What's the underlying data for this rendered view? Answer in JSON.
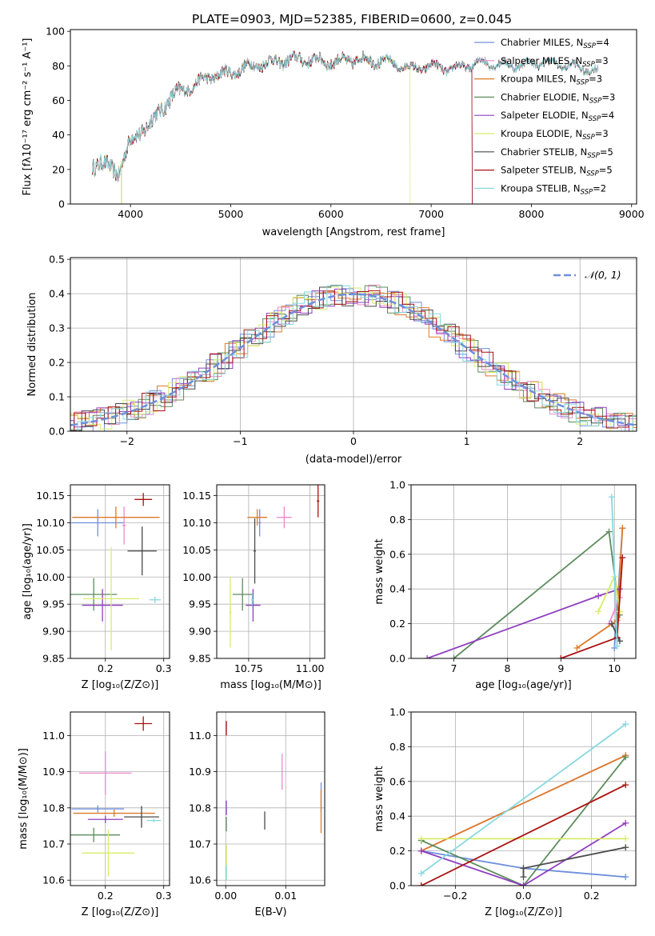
{
  "title": "PLATE=0903, MJD=52385, FIBERID=0600, z=0.045",
  "colors": [
    "#6f8fdc",
    "#ee88cc",
    "#dd7a28",
    "#5c8c5c",
    "#8f3fbf",
    "#d8ec6a",
    "#4a4a4a",
    "#aa1111",
    "#88d8e0"
  ],
  "chart_data": [
    {
      "type": "line",
      "title": "PLATE=0903, MJD=52385, FIBERID=0600, z=0.045",
      "xlabel": "wavelength [Angstrom, rest frame]",
      "ylabel": "Flux [fλ10⁻¹⁷ erg cm⁻² s⁻¹ A⁻¹]",
      "xlim": [
        3400,
        9050
      ],
      "ylim": [
        0,
        101
      ],
      "xticks": [
        "4000",
        "5000",
        "6000",
        "7000",
        "8000",
        "9000"
      ],
      "yticks": [
        "0",
        "20",
        "40",
        "60",
        "80",
        "100"
      ],
      "grid": false,
      "legend_position": "top-right",
      "legend": [
        {
          "label": "Chabrier MILES, N",
          "sub": "SSP",
          "val": "=4"
        },
        {
          "label": "Salpeter MILES, N",
          "sub": "SSP",
          "val": "=3"
        },
        {
          "label": "Kroupa MILES, N",
          "sub": "SSP",
          "val": "=3"
        },
        {
          "label": "Chabrier ELODIE, N",
          "sub": "SSP",
          "val": "=3"
        },
        {
          "label": "Salpeter ELODIE, N",
          "sub": "SSP",
          "val": "=4"
        },
        {
          "label": "Kroupa ELODIE, N",
          "sub": "SSP",
          "val": "=3"
        },
        {
          "label": "Chabrier STELIB, N",
          "sub": "SSP",
          "val": "=5"
        },
        {
          "label": "Salpeter STELIB, N",
          "sub": "SSP",
          "val": "=5"
        },
        {
          "label": "Kroupa STELIB, N",
          "sub": "SSP",
          "val": "=2"
        }
      ],
      "spectrum_envelope": [
        [
          3620,
          22
        ],
        [
          3700,
          25
        ],
        [
          3800,
          20
        ],
        [
          3880,
          18
        ],
        [
          3950,
          30
        ],
        [
          4000,
          36
        ],
        [
          4100,
          42
        ],
        [
          4250,
          50
        ],
        [
          4400,
          62
        ],
        [
          4600,
          68
        ],
        [
          4800,
          74
        ],
        [
          5000,
          76
        ],
        [
          5200,
          80
        ],
        [
          5400,
          82
        ],
        [
          5700,
          84
        ],
        [
          6000,
          82
        ],
        [
          6300,
          84
        ],
        [
          6600,
          82
        ],
        [
          6800,
          78
        ],
        [
          7000,
          80
        ],
        [
          7200,
          78
        ],
        [
          7500,
          82
        ],
        [
          7800,
          80
        ],
        [
          8100,
          82
        ],
        [
          8400,
          80
        ],
        [
          8700,
          76
        ]
      ],
      "coverage_end": [
        8670,
        8670,
        8670,
        7410,
        7410,
        6790,
        8670,
        7410,
        8670
      ]
    },
    {
      "type": "line",
      "xlabel": "(data-model)/error",
      "ylabel": "Normed distribution",
      "xlim": [
        -2.5,
        2.5
      ],
      "ylim": [
        0,
        0.505
      ],
      "xticks": [
        "−2",
        "−1",
        "0",
        "1",
        "2"
      ],
      "yticks": [
        "0.0",
        "0.1",
        "0.2",
        "0.3",
        "0.4",
        "0.5"
      ],
      "grid": true,
      "legend_position": "top-right",
      "reference_label": "𝒩(0, 1)",
      "histogram_bin_width": 0.1
    },
    {
      "type": "scatter",
      "xlabel": "Z [log₁₀(Z/Z⊙)]",
      "ylabel": "age  [log₁₀(age/yr)]",
      "xlim": [
        0.14,
        0.31
      ],
      "ylim": [
        9.85,
        10.17
      ],
      "xticks": [
        "0.2",
        "0.3"
      ],
      "yticks": [
        "9.85",
        "9.90",
        "9.95",
        "10.00",
        "10.05",
        "10.10",
        "10.15"
      ],
      "grid": true,
      "points": [
        {
          "x": 0.187,
          "y": 10.1,
          "xerr": 0.045,
          "yerr": 0.025
        },
        {
          "x": 0.232,
          "y": 10.095,
          "xerr": 0.003,
          "yerr": 0.035
        },
        {
          "x": 0.218,
          "y": 10.11,
          "xerr": 0.075,
          "yerr": 0.02
        },
        {
          "x": 0.18,
          "y": 9.968,
          "xerr": 0.04,
          "yerr": 0.03
        },
        {
          "x": 0.195,
          "y": 9.948,
          "xerr": 0.035,
          "yerr": 0.03
        },
        {
          "x": 0.21,
          "y": 9.96,
          "xerr": 0.048,
          "yerr": 0.095
        },
        {
          "x": 0.263,
          "y": 10.048,
          "xerr": 0.025,
          "yerr": 0.045
        },
        {
          "x": 0.265,
          "y": 10.143,
          "xerr": 0.015,
          "yerr": 0.012
        },
        {
          "x": 0.285,
          "y": 9.958,
          "xerr": 0.01,
          "yerr": 0.006
        }
      ]
    },
    {
      "type": "scatter",
      "xlabel": "mass [log₁₀(M/M⊙)]",
      "xlim": [
        10.62,
        11.06
      ],
      "ylim": [
        9.85,
        10.17
      ],
      "xticks": [
        "10.75",
        "11.00"
      ],
      "yticks": [
        "9.85",
        "9.90",
        "9.95",
        "10.00",
        "10.05",
        "10.10",
        "10.15"
      ],
      "grid": true,
      "points": [
        {
          "x": 10.795,
          "y": 10.1,
          "xerr": 0.005,
          "yerr": 0.025
        },
        {
          "x": 10.895,
          "y": 10.11,
          "xerr": 0.03,
          "yerr": 0.02
        },
        {
          "x": 10.785,
          "y": 10.11,
          "xerr": 0.04,
          "yerr": 0.015
        },
        {
          "x": 10.725,
          "y": 9.968,
          "xerr": 0.04,
          "yerr": 0.03
        },
        {
          "x": 10.768,
          "y": 9.948,
          "xerr": 0.03,
          "yerr": 0.03
        },
        {
          "x": 10.675,
          "y": 9.935,
          "xerr": 0.005,
          "yerr": 0.065
        },
        {
          "x": 10.775,
          "y": 10.048,
          "xerr": 0.005,
          "yerr": 0.06
        },
        {
          "x": 11.033,
          "y": 10.14,
          "xerr": 0.005,
          "yerr": 0.03
        },
        {
          "x": 10.765,
          "y": 9.958,
          "xerr": 0.005,
          "yerr": 0.01
        }
      ]
    },
    {
      "type": "line",
      "xlabel": "age  [log₁₀(age/yr)]",
      "ylabel": "mass weight",
      "xlim": [
        6.2,
        10.4
      ],
      "ylim": [
        0,
        1
      ],
      "xticks": [
        "7",
        "8",
        "9",
        "10"
      ],
      "yticks": [
        "0.0",
        "0.2",
        "0.4",
        "0.6",
        "0.8",
        "1.0"
      ],
      "grid": true,
      "series": [
        {
          "points": [
            [
              10.0,
              0.06
            ],
            [
              10.15,
              0.75
            ]
          ]
        },
        {
          "points": [
            [
              9.9,
              0.2
            ],
            [
              10.1,
              0.35
            ]
          ]
        },
        {
          "points": [
            [
              9.3,
              0.06
            ],
            [
              10.05,
              0.22
            ],
            [
              10.15,
              0.75
            ]
          ]
        },
        {
          "points": [
            [
              7.0,
              0.0
            ],
            [
              9.9,
              0.73
            ],
            [
              10.1,
              0.25
            ]
          ]
        },
        {
          "points": [
            [
              6.5,
              0.0
            ],
            [
              9.7,
              0.36
            ],
            [
              10.1,
              0.4
            ]
          ]
        },
        {
          "points": [
            [
              9.7,
              0.27
            ],
            [
              10.0,
              0.47
            ],
            [
              10.1,
              0.27
            ]
          ]
        },
        {
          "points": [
            [
              9.95,
              0.2
            ],
            [
              10.1,
              0.1
            ]
          ]
        },
        {
          "points": [
            [
              9.0,
              0.0
            ],
            [
              10.05,
              0.12
            ],
            [
              10.15,
              0.58
            ]
          ]
        },
        {
          "points": [
            [
              9.95,
              0.93
            ],
            [
              10.05,
              0.07
            ]
          ]
        }
      ]
    },
    {
      "type": "scatter",
      "xlabel": "Z [log₁₀(Z/Z⊙)]",
      "ylabel": "mass [log₁₀(M/M⊙)]",
      "xlim": [
        0.14,
        0.31
      ],
      "ylim": [
        10.585,
        11.065
      ],
      "xticks": [
        "0.2",
        "0.3"
      ],
      "yticks": [
        "10.6",
        "10.7",
        "10.8",
        "10.9",
        "11.0"
      ],
      "grid": true,
      "points": [
        {
          "x": 0.187,
          "y": 10.797,
          "xerr": 0.045,
          "yerr": 0.01
        },
        {
          "x": 0.2,
          "y": 10.896,
          "xerr": 0.045,
          "yerr": 0.06
        },
        {
          "x": 0.215,
          "y": 10.785,
          "xerr": 0.07,
          "yerr": 0.01
        },
        {
          "x": 0.18,
          "y": 10.725,
          "xerr": 0.045,
          "yerr": 0.02
        },
        {
          "x": 0.2,
          "y": 10.768,
          "xerr": 0.03,
          "yerr": 0.01
        },
        {
          "x": 0.205,
          "y": 10.675,
          "xerr": 0.045,
          "yerr": 0.065
        },
        {
          "x": 0.262,
          "y": 10.775,
          "xerr": 0.03,
          "yerr": 0.03
        },
        {
          "x": 0.265,
          "y": 11.033,
          "xerr": 0.015,
          "yerr": 0.02
        },
        {
          "x": 0.283,
          "y": 10.765,
          "xerr": 0.012,
          "yerr": 0.005
        }
      ]
    },
    {
      "type": "scatter",
      "xlabel": "E(B-V)",
      "xlim": [
        -0.0015,
        0.0165
      ],
      "ylim": [
        10.585,
        11.065
      ],
      "xticks": [
        "0.00",
        "0.01"
      ],
      "yticks": [
        "10.6",
        "10.7",
        "10.8",
        "10.9",
        "11.0"
      ],
      "grid": true,
      "points": [
        {
          "x": 0.0159,
          "y": 10.83,
          "yerr": 0.04
        },
        {
          "x": 0.0094,
          "y": 10.9,
          "yerr": 0.05
        },
        {
          "x": 0.0159,
          "y": 10.79,
          "yerr": 0.06
        },
        {
          "x": 0.0001,
          "y": 10.755,
          "yerr": 0.02
        },
        {
          "x": 0.0001,
          "y": 10.8,
          "yerr": 0.02
        },
        {
          "x": 0.0001,
          "y": 10.65,
          "yerr": 0.05
        },
        {
          "x": 0.0065,
          "y": 10.765,
          "yerr": 0.025
        },
        {
          "x": 0.0001,
          "y": 11.02,
          "yerr": 0.02
        },
        {
          "x": 0.0001,
          "y": 10.62,
          "yerr": 0.02
        }
      ]
    },
    {
      "type": "line",
      "xlabel": "Z [log₁₀(Z/Z⊙)]",
      "ylabel": "mass weight",
      "xlim": [
        -0.33,
        0.33
      ],
      "ylim": [
        0,
        1
      ],
      "xticks": [
        "−0.2",
        "0.0",
        "0.2"
      ],
      "yticks": [
        "0.0",
        "0.2",
        "0.4",
        "0.6",
        "0.8",
        "1.0"
      ],
      "grid": true,
      "series": [
        {
          "points": [
            [
              -0.3,
              0.2
            ],
            [
              0.0,
              0.1
            ],
            [
              0.3,
              0.05
            ]
          ]
        },
        {
          "points": [
            [
              -0.3,
              0.2
            ],
            [
              0.3,
              0.75
            ]
          ]
        },
        {
          "points": [
            [
              -0.3,
              0.2
            ],
            [
              0.3,
              0.75
            ]
          ]
        },
        {
          "points": [
            [
              -0.3,
              0.26
            ],
            [
              0.0,
              0.0
            ],
            [
              0.3,
              0.74
            ]
          ]
        },
        {
          "points": [
            [
              -0.3,
              0.2
            ],
            [
              0.0,
              0.0
            ],
            [
              0.3,
              0.36
            ]
          ]
        },
        {
          "points": [
            [
              -0.3,
              0.27
            ],
            [
              0.3,
              0.27
            ]
          ]
        },
        {
          "points": [
            [
              0.0,
              0.05
            ],
            [
              0.0,
              0.1
            ],
            [
              0.3,
              0.22
            ]
          ]
        },
        {
          "points": [
            [
              -0.3,
              0.0
            ],
            [
              0.3,
              0.58
            ]
          ]
        },
        {
          "points": [
            [
              -0.3,
              0.07
            ],
            [
              0.3,
              0.93
            ]
          ]
        }
      ]
    }
  ]
}
